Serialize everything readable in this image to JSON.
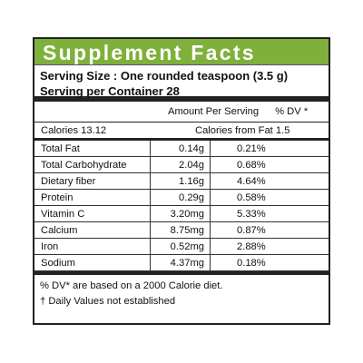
{
  "title": "Supplement Facts",
  "serving_size": "Serving Size : One rounded teaspoon (3.5 g)",
  "servings_per_container": "Serving per Container 28",
  "amount_per_serving_label": "Amount Per Serving",
  "dv_label": "% DV *",
  "calories": "Calories 13.12",
  "calories_from_fat": "Calories from Fat 1.5",
  "nutrients": [
    {
      "name": "Total Fat",
      "amount": "0.14g",
      "dv": "0.21%"
    },
    {
      "name": "Total Carbohydrate",
      "amount": "2.04g",
      "dv": "0.68%"
    },
    {
      "name": "Dietary fiber",
      "amount": "1.16g",
      "dv": "4.64%"
    },
    {
      "name": "Protein",
      "amount": "0.29g",
      "dv": "0.58%"
    },
    {
      "name": "Vitamin C",
      "amount": "3.20mg",
      "dv": "5.33%"
    },
    {
      "name": "Calcium",
      "amount": "8.75mg",
      "dv": "0.87%"
    },
    {
      "name": "Iron",
      "amount": "0.52mg",
      "dv": "2.88%"
    },
    {
      "name": "Sodium",
      "amount": "4.37mg",
      "dv": "0.18%"
    }
  ],
  "footnote_dv": "% DV* are based on a 2000 Calorie diet.",
  "footnote_dagger": "† Daily Values not established",
  "colors": {
    "header": "#7fb03c",
    "border": "#222222"
  }
}
